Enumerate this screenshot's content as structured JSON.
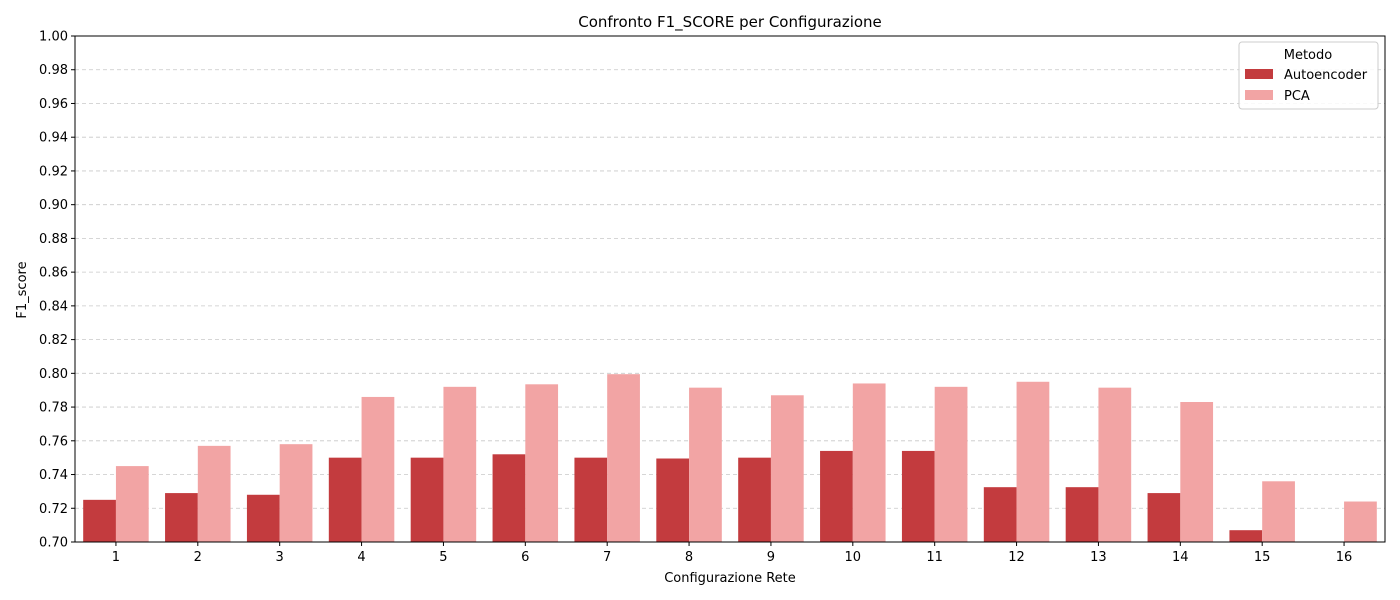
{
  "chart_data": {
    "type": "bar",
    "title": "Confronto F1_SCORE per Configurazione",
    "xlabel": "Configurazione Rete",
    "ylabel": "F1_score",
    "ylim": [
      0.7,
      1.0
    ],
    "yticks": [
      "0.70",
      "0.72",
      "0.74",
      "0.76",
      "0.78",
      "0.80",
      "0.82",
      "0.84",
      "0.86",
      "0.88",
      "0.90",
      "0.92",
      "0.94",
      "0.96",
      "0.98",
      "1.00"
    ],
    "categories": [
      "1",
      "2",
      "3",
      "4",
      "5",
      "6",
      "7",
      "8",
      "9",
      "10",
      "11",
      "12",
      "13",
      "14",
      "15",
      "16"
    ],
    "grid": "y-dashed",
    "legend": {
      "title": "Metodo",
      "placement": "top-right"
    },
    "series": [
      {
        "name": "Autoencoder",
        "color": "#c33b3e",
        "values": [
          0.725,
          0.729,
          0.728,
          0.75,
          0.75,
          0.752,
          0.75,
          0.7495,
          0.75,
          0.754,
          0.754,
          0.7325,
          0.7325,
          0.729,
          0.707,
          null
        ]
      },
      {
        "name": "PCA",
        "color": "#f2a4a4",
        "values": [
          0.745,
          0.757,
          0.758,
          0.786,
          0.792,
          0.7935,
          0.7995,
          0.7915,
          0.787,
          0.794,
          0.792,
          0.795,
          0.7915,
          0.783,
          0.736,
          0.724
        ]
      }
    ]
  }
}
